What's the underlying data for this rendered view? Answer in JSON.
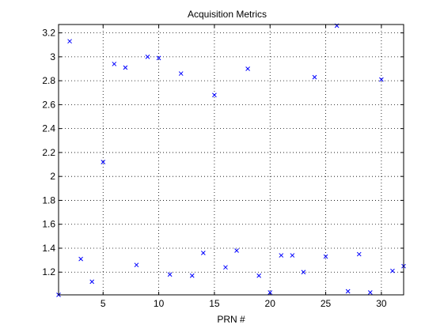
{
  "chart_data": {
    "type": "scatter",
    "title": "Acquisition Metrics",
    "xlabel": "PRN #",
    "ylabel": "",
    "xlim": [
      1,
      32
    ],
    "ylim": [
      1.01,
      3.27
    ],
    "xticks": [
      5,
      10,
      15,
      20,
      25,
      30
    ],
    "yticks": [
      1.2,
      1.4,
      1.6,
      1.8,
      2,
      2.2,
      2.4,
      2.6,
      2.8,
      3,
      3.2
    ],
    "ytick_labels": [
      "1.2",
      "1.4",
      "1.6",
      "1.8",
      "2",
      "2.2",
      "2.4",
      "2.6",
      "2.8",
      "3",
      "3.2"
    ],
    "xtick_labels": [
      "5",
      "10",
      "15",
      "20",
      "25",
      "30"
    ],
    "grid": true,
    "marker": "x",
    "marker_color": "#0000ff",
    "series": [
      {
        "x": [
          1,
          2,
          3,
          4,
          5,
          6,
          7,
          8,
          9,
          10,
          11,
          12,
          13,
          14,
          15,
          16,
          17,
          18,
          19,
          20,
          21,
          22,
          23,
          24,
          25,
          26,
          27,
          28,
          29,
          30,
          31,
          32
        ],
        "y": [
          1.01,
          3.13,
          1.31,
          1.12,
          2.12,
          2.94,
          2.91,
          1.26,
          3.0,
          2.99,
          1.18,
          2.86,
          1.17,
          1.36,
          2.68,
          1.24,
          1.38,
          2.9,
          1.17,
          1.03,
          1.34,
          1.34,
          1.2,
          2.83,
          1.33,
          3.26,
          1.04,
          1.35,
          1.03,
          2.81,
          1.21,
          1.25
        ]
      }
    ]
  }
}
